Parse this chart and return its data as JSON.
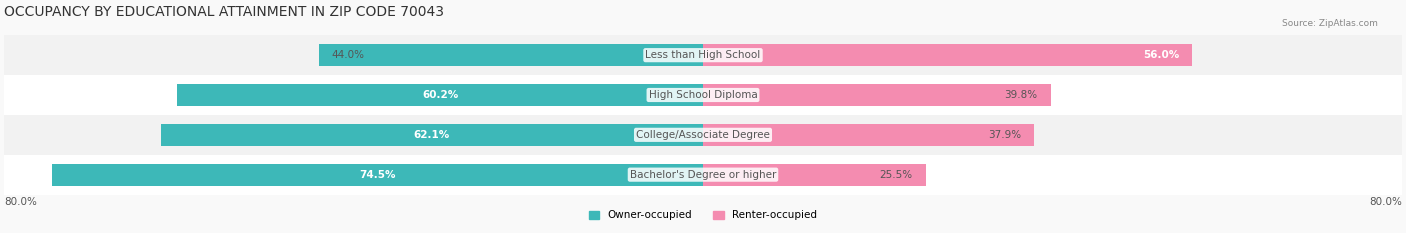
{
  "title": "OCCUPANCY BY EDUCATIONAL ATTAINMENT IN ZIP CODE 70043",
  "source": "Source: ZipAtlas.com",
  "categories": [
    "Less than High School",
    "High School Diploma",
    "College/Associate Degree",
    "Bachelor's Degree or higher"
  ],
  "owner_values": [
    44.0,
    60.2,
    62.1,
    74.5
  ],
  "renter_values": [
    56.0,
    39.8,
    37.9,
    25.5
  ],
  "owner_color": "#3db8b8",
  "renter_color": "#f48cb0",
  "bar_bg_color": "#e8e8e8",
  "row_bg_colors": [
    "#f2f2f2",
    "#ffffff",
    "#f2f2f2",
    "#ffffff"
  ],
  "xlim_left": -80.0,
  "xlim_right": 80.0,
  "axis_label_left": "80.0%",
  "axis_label_right": "80.0%",
  "title_fontsize": 10,
  "label_fontsize": 7.5,
  "bar_height": 0.55,
  "figsize": [
    14.06,
    2.33
  ],
  "dpi": 100
}
